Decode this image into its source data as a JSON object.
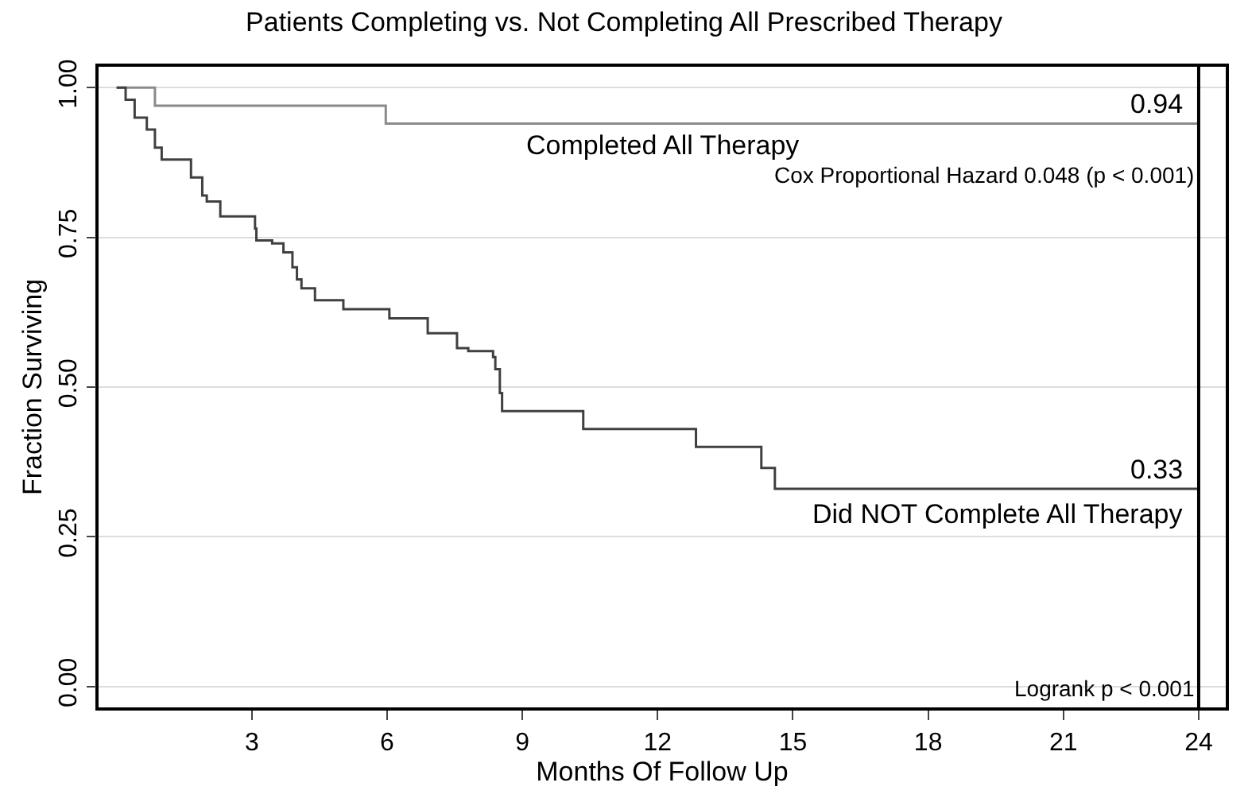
{
  "chart_data": {
    "type": "step",
    "title": "Patients Completing vs. Not Completing All Prescribed Therapy",
    "xlabel": "Months Of Follow Up",
    "ylabel": "Fraction Surviving",
    "series": [
      {
        "name": "Completed All Therapy",
        "color": "#8a8a8a",
        "x": [
          0,
          0.85,
          5.97,
          24
        ],
        "values": [
          1.0,
          0.97,
          0.94,
          0.94
        ]
      },
      {
        "name": "Did NOT Complete All Therapy",
        "color": "#404040",
        "x": [
          0,
          0.2,
          0.4,
          0.67,
          0.85,
          1.0,
          1.65,
          1.9,
          2.0,
          2.3,
          3.07,
          3.1,
          3.45,
          3.7,
          3.9,
          4.0,
          4.1,
          4.4,
          5.03,
          6.05,
          6.9,
          7.55,
          7.8,
          8.35,
          8.4,
          8.5,
          8.55,
          10.35,
          12.85,
          14.3,
          14.6,
          24
        ],
        "values": [
          1.0,
          0.98,
          0.95,
          0.93,
          0.9,
          0.88,
          0.85,
          0.82,
          0.81,
          0.785,
          0.765,
          0.745,
          0.74,
          0.725,
          0.7,
          0.68,
          0.665,
          0.645,
          0.63,
          0.615,
          0.59,
          0.565,
          0.56,
          0.55,
          0.53,
          0.49,
          0.46,
          0.43,
          0.4,
          0.365,
          0.33,
          0.33
        ]
      }
    ],
    "annotations": [
      {
        "text": "0.94",
        "x": 24,
        "y": 0.94
      },
      {
        "text": "0.33",
        "x": 24,
        "y": 0.33
      },
      "Cox Proportional Hazard 0.048 (p < 0.001)",
      "Logrank p < 0.001"
    ],
    "ref_lines": [
      {
        "axis": "x",
        "value": 24,
        "color": "#000000"
      }
    ],
    "xlim": [
      -0.4,
      24.6
    ],
    "ylim": [
      -0.035,
      1.035
    ],
    "xticks": [
      3,
      6,
      9,
      12,
      15,
      18,
      21,
      24
    ],
    "yticks": [
      {
        "value": 0,
        "label": "0.00"
      },
      {
        "value": 0.25,
        "label": "0.25"
      },
      {
        "value": 0.5,
        "label": "0.50"
      },
      {
        "value": 0.75,
        "label": "0.75"
      },
      {
        "value": 1,
        "label": "1.00"
      }
    ],
    "grid": "y",
    "legend": false,
    "marker": "none",
    "line_style": "solid"
  }
}
